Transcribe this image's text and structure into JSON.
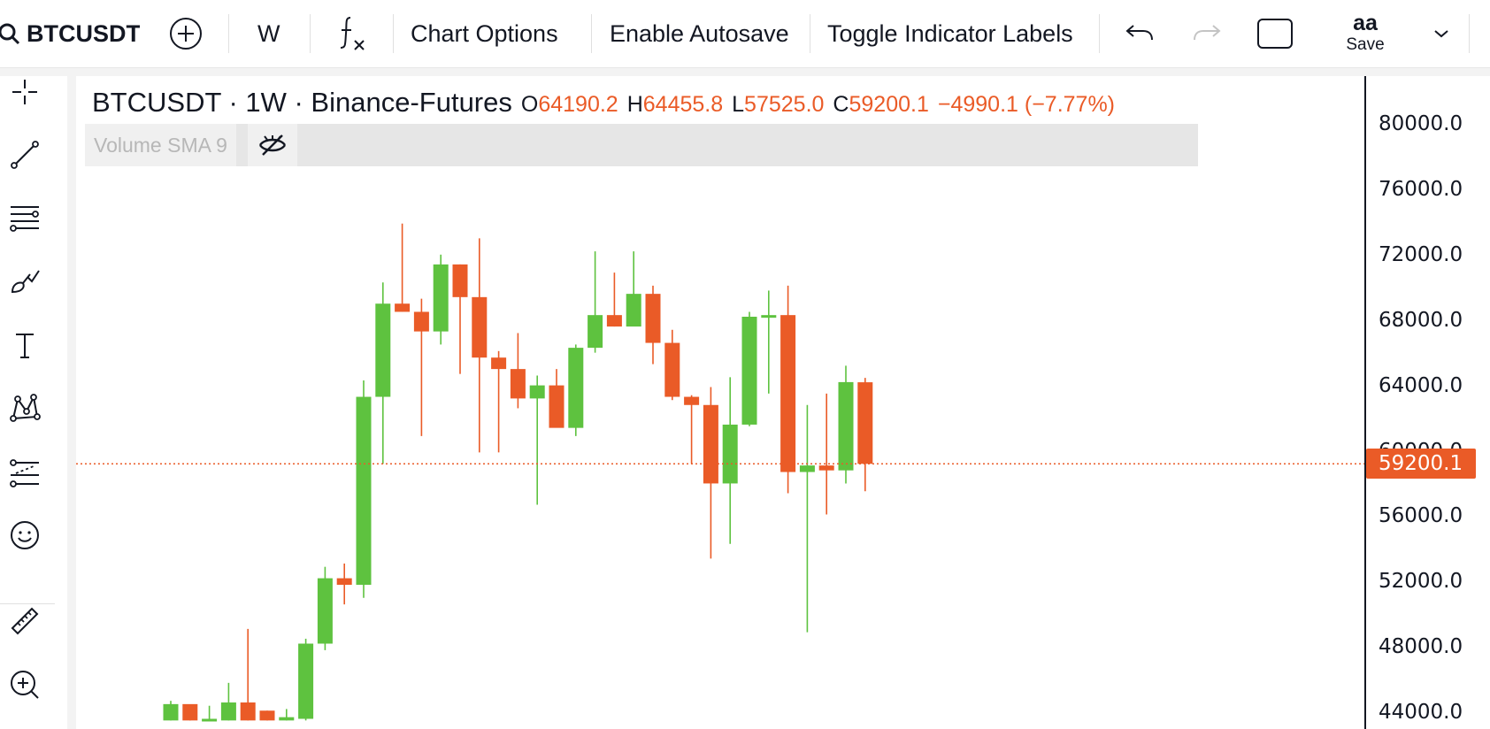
{
  "toolbar": {
    "symbol": "BTCUSDT",
    "interval": "W",
    "chart_options": "Chart Options",
    "enable_autosave": "Enable Autosave",
    "toggle_indicator_labels": "Toggle Indicator Labels",
    "layout_name": "aa",
    "save_label": "Save"
  },
  "sidebar": {
    "tools": [
      "crosshair-icon",
      "trend-line-icon",
      "fib-lines-icon",
      "brush-icon",
      "text-icon",
      "pattern-icon",
      "forecast-icon",
      "emoji-icon",
      "ruler-icon",
      "zoom-in-icon"
    ]
  },
  "legend": {
    "title": "BTCUSDT · 1W · Binance-Futures",
    "o_key": "O",
    "open": "64190.2",
    "h_key": "H",
    "high": "64455.8",
    "l_key": "L",
    "low": "57525.0",
    "c_key": "C",
    "close": "59200.1",
    "change": "−4990.1 (−7.77%)"
  },
  "indicator": {
    "label": "Volume SMA 9"
  },
  "colors": {
    "up": "#5ec23f",
    "down": "#ea5b27",
    "text": "#131722"
  },
  "price_axis": {
    "ticks": [
      "80000.0",
      "76000.0",
      "72000.0",
      "68000.0",
      "64000.0",
      "60000.0",
      "56000.0",
      "52000.0",
      "48000.0",
      "44000.0"
    ],
    "last_price": "59200.1"
  },
  "chart_data": {
    "type": "candlestick",
    "interval": "1W",
    "ylim": [
      43500,
      81500
    ],
    "candles": [
      {
        "o": 43500,
        "h": 44700,
        "l": 43500,
        "c": 44500
      },
      {
        "o": 44500,
        "h": 44200,
        "l": 43500,
        "c": 43500
      },
      {
        "o": 43500,
        "h": 44400,
        "l": 43500,
        "c": 43600
      },
      {
        "o": 43500,
        "h": 45800,
        "l": 43500,
        "c": 44600
      },
      {
        "o": 44600,
        "h": 49100,
        "l": 43500,
        "c": 43500
      },
      {
        "o": 44100,
        "h": 44100,
        "l": 43500,
        "c": 43500
      },
      {
        "o": 43500,
        "h": 44200,
        "l": 43500,
        "c": 43700
      },
      {
        "o": 43600,
        "h": 48500,
        "l": 43500,
        "c": 48200
      },
      {
        "o": 48200,
        "h": 52900,
        "l": 47800,
        "c": 52200
      },
      {
        "o": 52200,
        "h": 53100,
        "l": 50600,
        "c": 51800
      },
      {
        "o": 51800,
        "h": 64300,
        "l": 51000,
        "c": 63300
      },
      {
        "o": 63300,
        "h": 70300,
        "l": 59200,
        "c": 69000
      },
      {
        "o": 69000,
        "h": 73900,
        "l": 68500,
        "c": 68500
      },
      {
        "o": 68500,
        "h": 69300,
        "l": 60900,
        "c": 67300
      },
      {
        "o": 67300,
        "h": 72000,
        "l": 66500,
        "c": 71400
      },
      {
        "o": 71400,
        "h": 71400,
        "l": 64700,
        "c": 69400
      },
      {
        "o": 69400,
        "h": 73000,
        "l": 59900,
        "c": 65700
      },
      {
        "o": 65700,
        "h": 66100,
        "l": 59900,
        "c": 65000
      },
      {
        "o": 65000,
        "h": 67200,
        "l": 62600,
        "c": 63200
      },
      {
        "o": 63200,
        "h": 64600,
        "l": 56700,
        "c": 64000
      },
      {
        "o": 64000,
        "h": 65000,
        "l": 61500,
        "c": 61400
      },
      {
        "o": 61400,
        "h": 66500,
        "l": 60900,
        "c": 66300
      },
      {
        "o": 66300,
        "h": 72200,
        "l": 66000,
        "c": 68300
      },
      {
        "o": 68300,
        "h": 70900,
        "l": 67600,
        "c": 67600
      },
      {
        "o": 67600,
        "h": 72200,
        "l": 67700,
        "c": 69600
      },
      {
        "o": 69600,
        "h": 70100,
        "l": 65300,
        "c": 66600
      },
      {
        "o": 66600,
        "h": 67400,
        "l": 63100,
        "c": 63300
      },
      {
        "o": 63300,
        "h": 63400,
        "l": 59200,
        "c": 62800
      },
      {
        "o": 62800,
        "h": 63900,
        "l": 53400,
        "c": 58000
      },
      {
        "o": 58000,
        "h": 64500,
        "l": 54300,
        "c": 61600
      },
      {
        "o": 61600,
        "h": 68500,
        "l": 61500,
        "c": 68200
      },
      {
        "o": 68200,
        "h": 69800,
        "l": 63500,
        "c": 68300
      },
      {
        "o": 68300,
        "h": 70100,
        "l": 57400,
        "c": 58700
      },
      {
        "o": 58700,
        "h": 62800,
        "l": 48900,
        "c": 59100
      },
      {
        "o": 59100,
        "h": 63500,
        "l": 56100,
        "c": 58800
      },
      {
        "o": 58800,
        "h": 65200,
        "l": 58000,
        "c": 64200
      },
      {
        "o": 64190.2,
        "h": 64455.8,
        "l": 57525.0,
        "c": 59200.1
      }
    ]
  }
}
